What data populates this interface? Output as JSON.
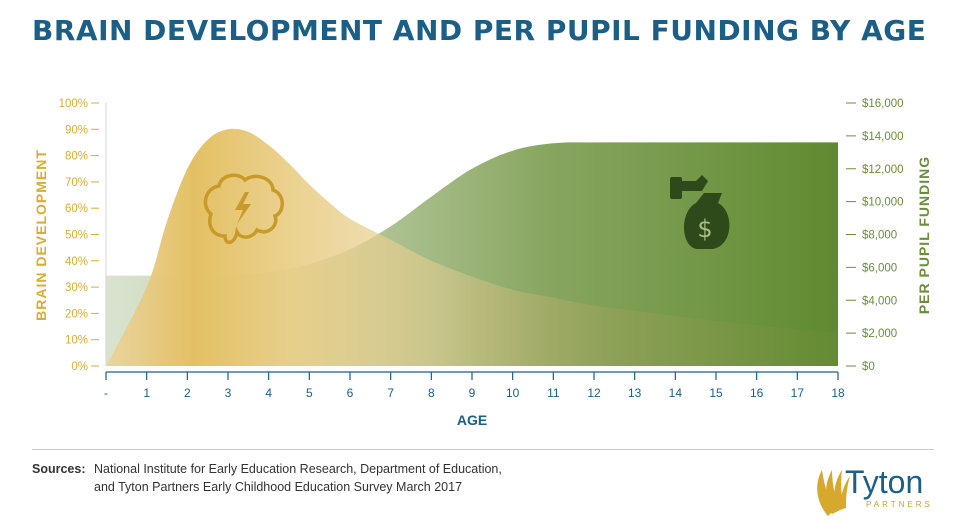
{
  "chart_data": {
    "type": "area",
    "title": "BRAIN DEVELOPMENT AND PER PUPIL FUNDING BY AGE",
    "xlabel": "AGE",
    "ylabel_left": "BRAIN DEVELOPMENT",
    "ylabel_right": "PER PUPIL FUNDING",
    "x_ticks": [
      "-",
      "1",
      "2",
      "3",
      "4",
      "5",
      "6",
      "7",
      "8",
      "9",
      "10",
      "11",
      "12",
      "13",
      "14",
      "15",
      "16",
      "17",
      "18"
    ],
    "y_left_ticks": [
      "0%",
      "10%",
      "20%",
      "30%",
      "40%",
      "50%",
      "60%",
      "70%",
      "80%",
      "90%",
      "100%"
    ],
    "y_right_ticks": [
      "$0",
      "$2,000",
      "$4,000",
      "$6,000",
      "$8,000",
      "$10,000",
      "$12,000",
      "$14,000",
      "$16,000"
    ],
    "ylim_left": [
      0,
      100
    ],
    "ylim_right": [
      0,
      16000
    ],
    "series": [
      {
        "name": "BRAIN DEVELOPMENT",
        "axis": "left",
        "color": "#e6bd4a",
        "x": [
          0,
          1,
          1.5,
          2,
          2.5,
          3,
          3.5,
          4,
          4.5,
          5,
          5.5,
          6,
          7,
          8,
          9,
          10,
          11,
          12,
          13,
          14,
          15,
          16,
          17,
          18
        ],
        "values": [
          0,
          30,
          55,
          75,
          86,
          90,
          89,
          84,
          77,
          69,
          62,
          56,
          48,
          40,
          34,
          29,
          26,
          23,
          21,
          19,
          17,
          15.5,
          14,
          12.5
        ]
      },
      {
        "name": "PER PUPIL FUNDING",
        "axis": "right",
        "color": "#6b8e3a",
        "x": [
          0,
          3,
          4,
          5,
          6,
          7,
          8,
          9,
          10,
          11,
          12,
          13,
          14,
          15,
          16,
          17,
          18
        ],
        "values": [
          5500,
          5500,
          5700,
          6200,
          7100,
          8500,
          10300,
          12000,
          13100,
          13550,
          13600,
          13600,
          13600,
          13600,
          13600,
          13600,
          13600
        ]
      }
    ]
  },
  "sources": {
    "label": "Sources:",
    "line1": "National Institute for Early Education Research, Department of Education,",
    "line2": "and Tyton Partners Early Childhood Education Survey March 2017"
  },
  "logo": {
    "name": "Tyton",
    "sub": "PARTNERS"
  },
  "colors": {
    "title": "#1b5f86",
    "brain": "#d6a82c",
    "funding": "#5f8a30",
    "axis_left_text": "#d9ad33",
    "axis_right_text": "#6b8e3a"
  },
  "icons": [
    "brain-lightning-icon",
    "money-bag-icon"
  ]
}
